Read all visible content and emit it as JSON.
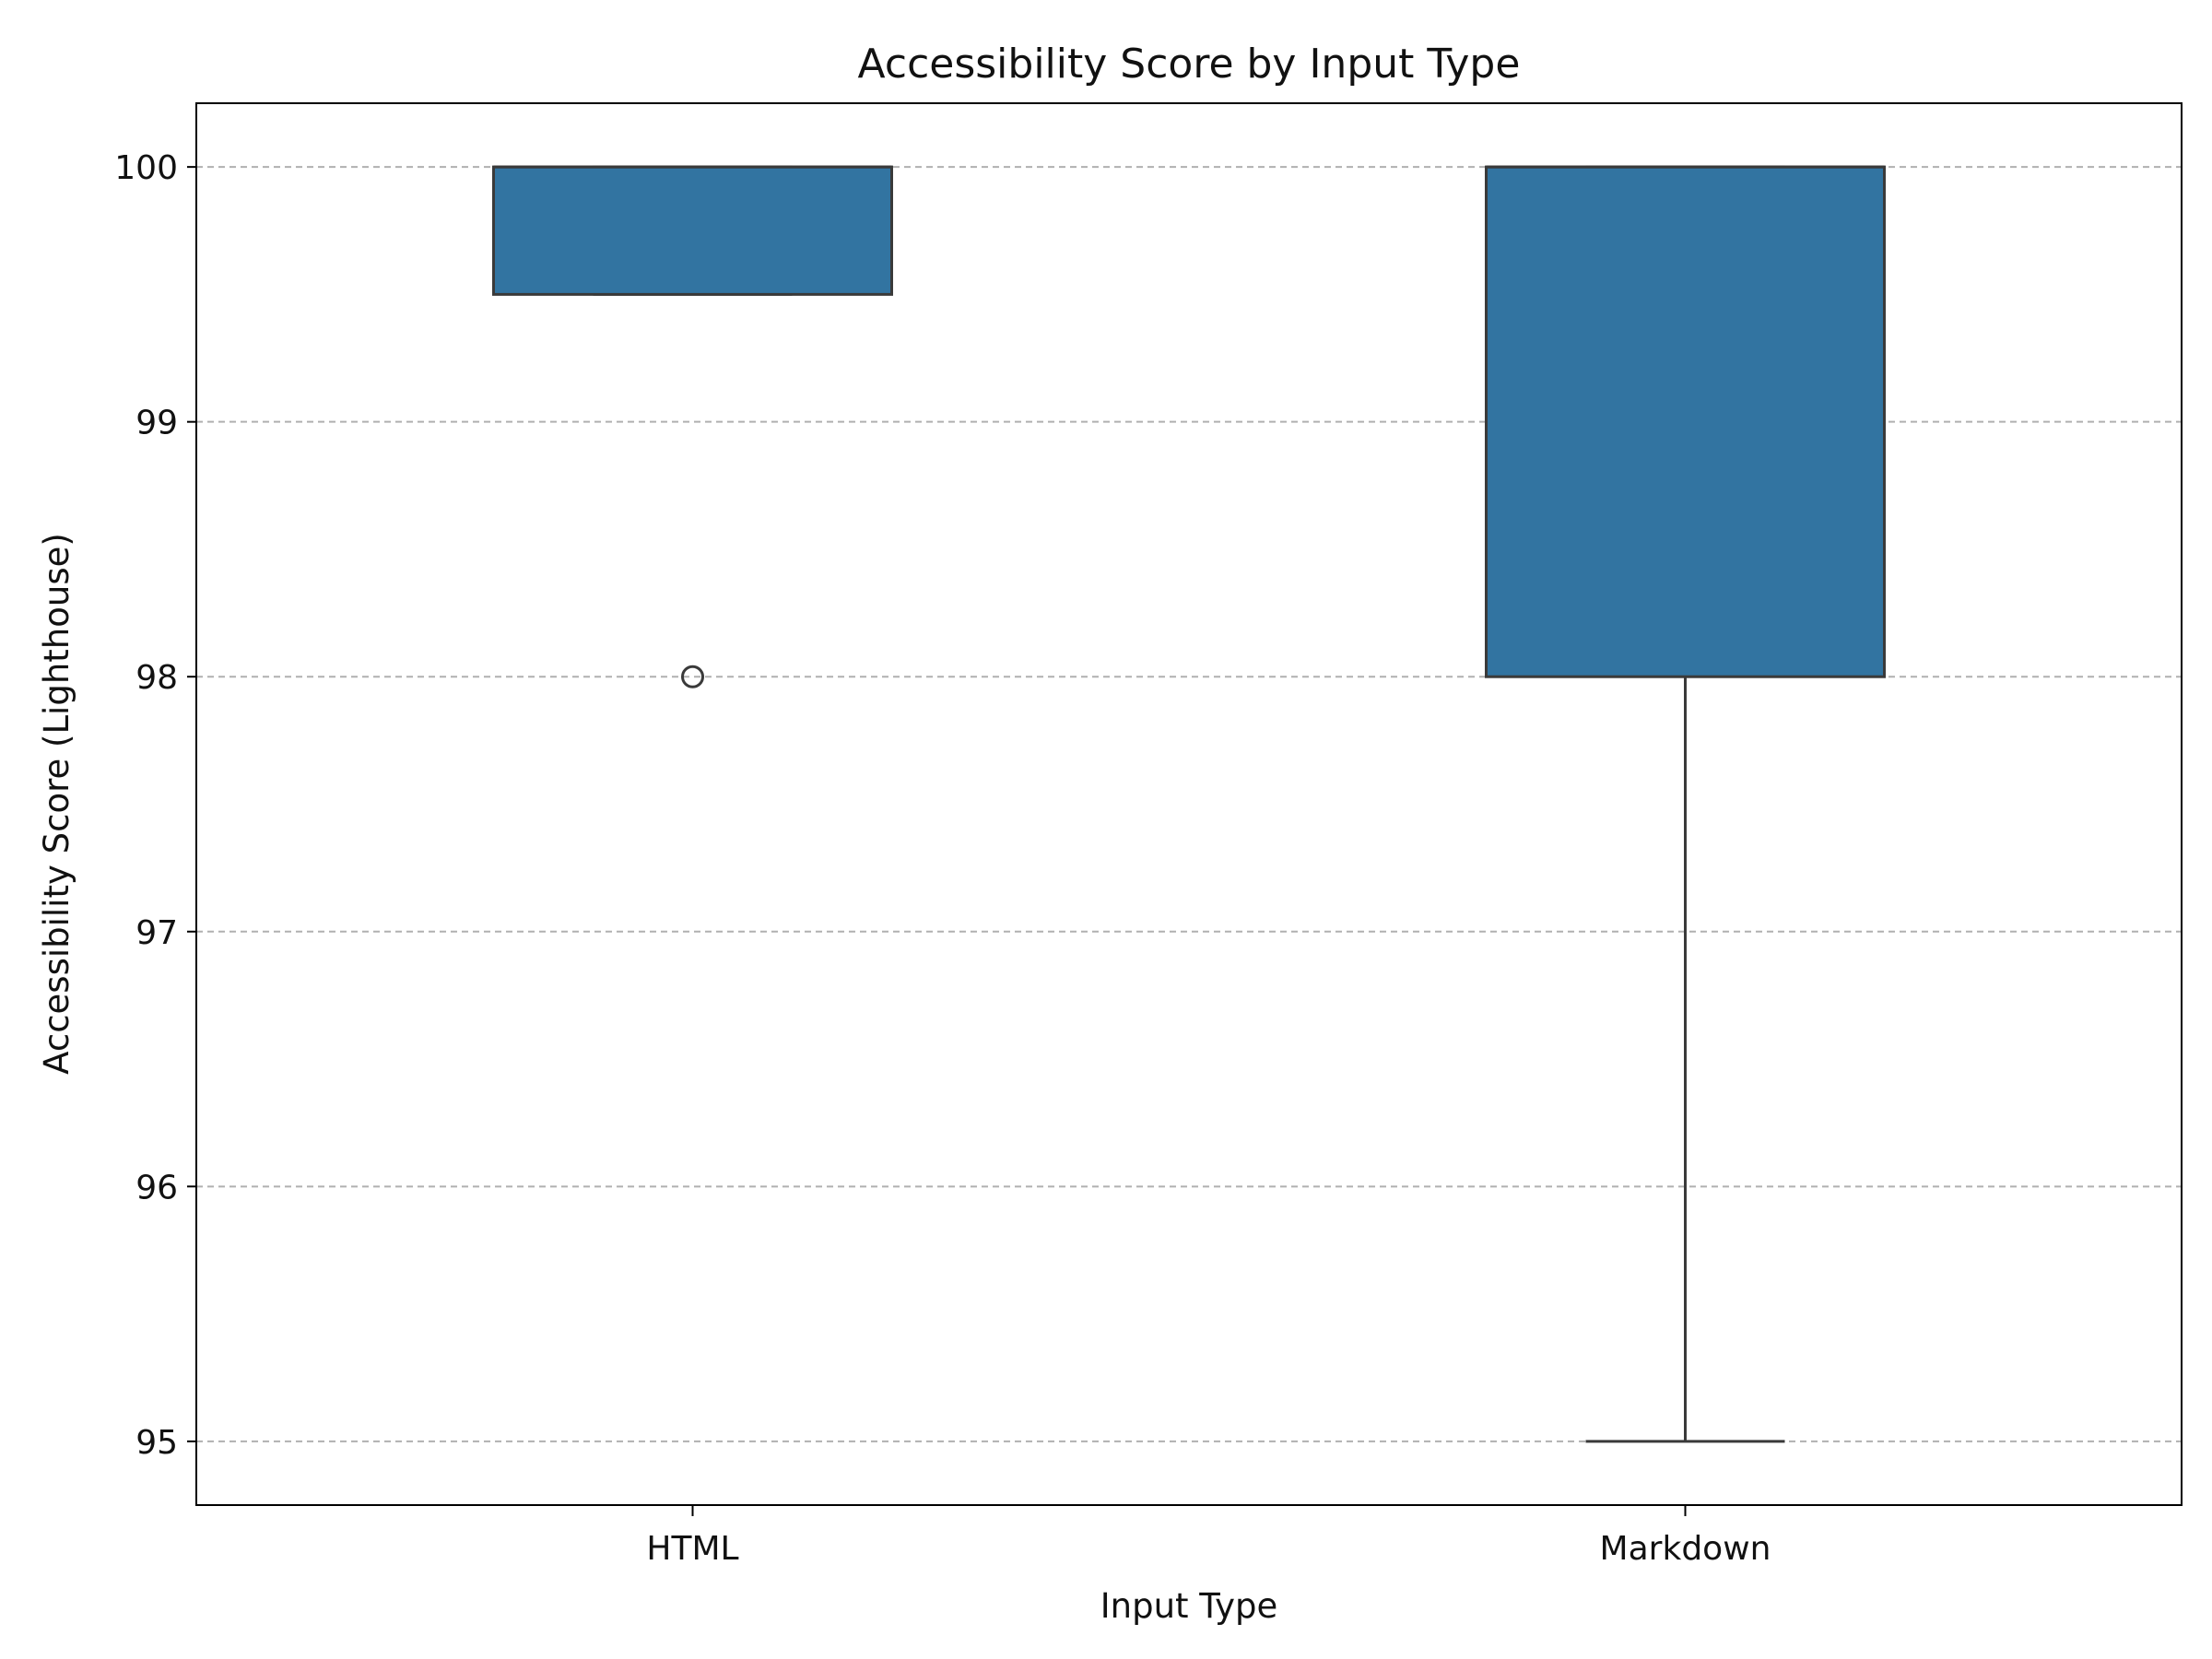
{
  "chart_data": {
    "type": "box",
    "title": "Accessibility Score by Input Type",
    "xlabel": "Input Type",
    "ylabel": "Accessibility Score (Lighthouse)",
    "categories": [
      "HTML",
      "Markdown"
    ],
    "ylim": [
      94.75,
      100.25
    ],
    "yticks": [
      95,
      96,
      97,
      98,
      99,
      100
    ],
    "grid": "horizontal dashed",
    "box_color": "#3274a1",
    "outline_color": "#3a3a3a",
    "boxes": [
      {
        "category": "HTML",
        "whisker_low": 99.5,
        "q1": 99.5,
        "median": 100,
        "q3": 100,
        "whisker_high": 100,
        "outliers": [
          98
        ]
      },
      {
        "category": "Markdown",
        "whisker_low": 95,
        "q1": 98,
        "median": 100,
        "q3": 100,
        "whisker_high": 100,
        "outliers": []
      }
    ]
  }
}
